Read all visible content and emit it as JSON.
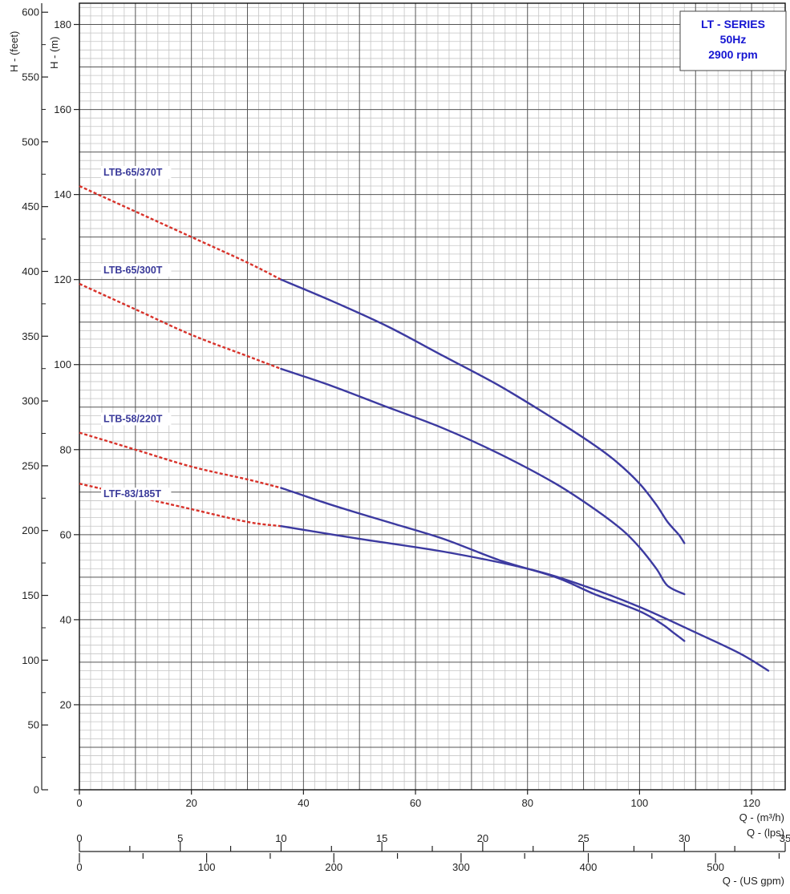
{
  "chart_data": {
    "type": "line",
    "title_lines": [
      "LT - SERIES",
      "50Hz",
      "2900 rpm"
    ],
    "x_axis": {
      "label": "Q - (m³/h)",
      "range": [
        0,
        126
      ],
      "ticks": [
        0,
        20,
        40,
        60,
        80,
        100,
        120
      ]
    },
    "secondary_x_axes": [
      {
        "label": "Q - (lps)",
        "ticks": [
          "0",
          "5",
          "10",
          "15",
          "20",
          "25",
          "30",
          "35"
        ]
      },
      {
        "label": "Q - (US gpm)",
        "ticks": [
          "0",
          "100",
          "200",
          "300",
          "400",
          "500"
        ]
      }
    ],
    "y_axis": {
      "label": "H - (m)",
      "range": [
        0,
        185
      ],
      "ticks": [
        20,
        40,
        60,
        80,
        100,
        120,
        140,
        160,
        180
      ]
    },
    "secondary_y_axis": {
      "label": "H - (feet)",
      "ticks": [
        "0",
        "50",
        "100",
        "150",
        "200",
        "250",
        "300",
        "350",
        "400",
        "450",
        "500",
        "550",
        "600"
      ]
    },
    "grid": true,
    "legend_position": "top-right",
    "series": [
      {
        "name": "LTB-65/370T",
        "dashed": [
          [
            0,
            142
          ],
          [
            10,
            136
          ],
          [
            20,
            130
          ],
          [
            30,
            124
          ],
          [
            36,
            120
          ]
        ],
        "solid": [
          [
            36,
            120
          ],
          [
            45,
            115
          ],
          [
            55,
            109
          ],
          [
            65,
            102
          ],
          [
            75,
            95
          ],
          [
            85,
            87
          ],
          [
            92,
            81
          ],
          [
            96,
            77
          ],
          [
            100,
            72
          ],
          [
            103,
            67
          ],
          [
            105,
            63
          ],
          [
            107,
            60
          ],
          [
            108,
            58
          ]
        ]
      },
      {
        "name": "LTB-65/300T",
        "dashed": [
          [
            0,
            119
          ],
          [
            10,
            113
          ],
          [
            20,
            107
          ],
          [
            30,
            102
          ],
          [
            36,
            99
          ]
        ],
        "solid": [
          [
            36,
            99
          ],
          [
            45,
            95
          ],
          [
            55,
            90
          ],
          [
            65,
            85
          ],
          [
            75,
            79
          ],
          [
            85,
            72
          ],
          [
            92,
            66
          ],
          [
            97,
            61
          ],
          [
            100,
            57
          ],
          [
            103,
            52
          ],
          [
            105,
            48
          ],
          [
            108,
            46
          ]
        ]
      },
      {
        "name": "LTB-58/220T",
        "dashed": [
          [
            0,
            84
          ],
          [
            10,
            80
          ],
          [
            20,
            76
          ],
          [
            30,
            73
          ],
          [
            36,
            71
          ]
        ],
        "solid": [
          [
            36,
            71
          ],
          [
            45,
            67
          ],
          [
            55,
            63
          ],
          [
            65,
            59
          ],
          [
            75,
            54
          ],
          [
            85,
            50
          ],
          [
            92,
            46
          ],
          [
            100,
            42
          ],
          [
            104,
            39
          ],
          [
            106,
            37
          ],
          [
            108,
            35
          ]
        ]
      },
      {
        "name": "LTF-83/185T",
        "dashed": [
          [
            0,
            72
          ],
          [
            10,
            69
          ],
          [
            20,
            66
          ],
          [
            30,
            63
          ],
          [
            36,
            62
          ]
        ],
        "solid": [
          [
            36,
            62
          ],
          [
            50,
            59
          ],
          [
            65,
            56
          ],
          [
            80,
            52
          ],
          [
            90,
            48
          ],
          [
            100,
            43
          ],
          [
            110,
            37
          ],
          [
            118,
            32
          ],
          [
            123,
            28
          ]
        ]
      }
    ]
  }
}
